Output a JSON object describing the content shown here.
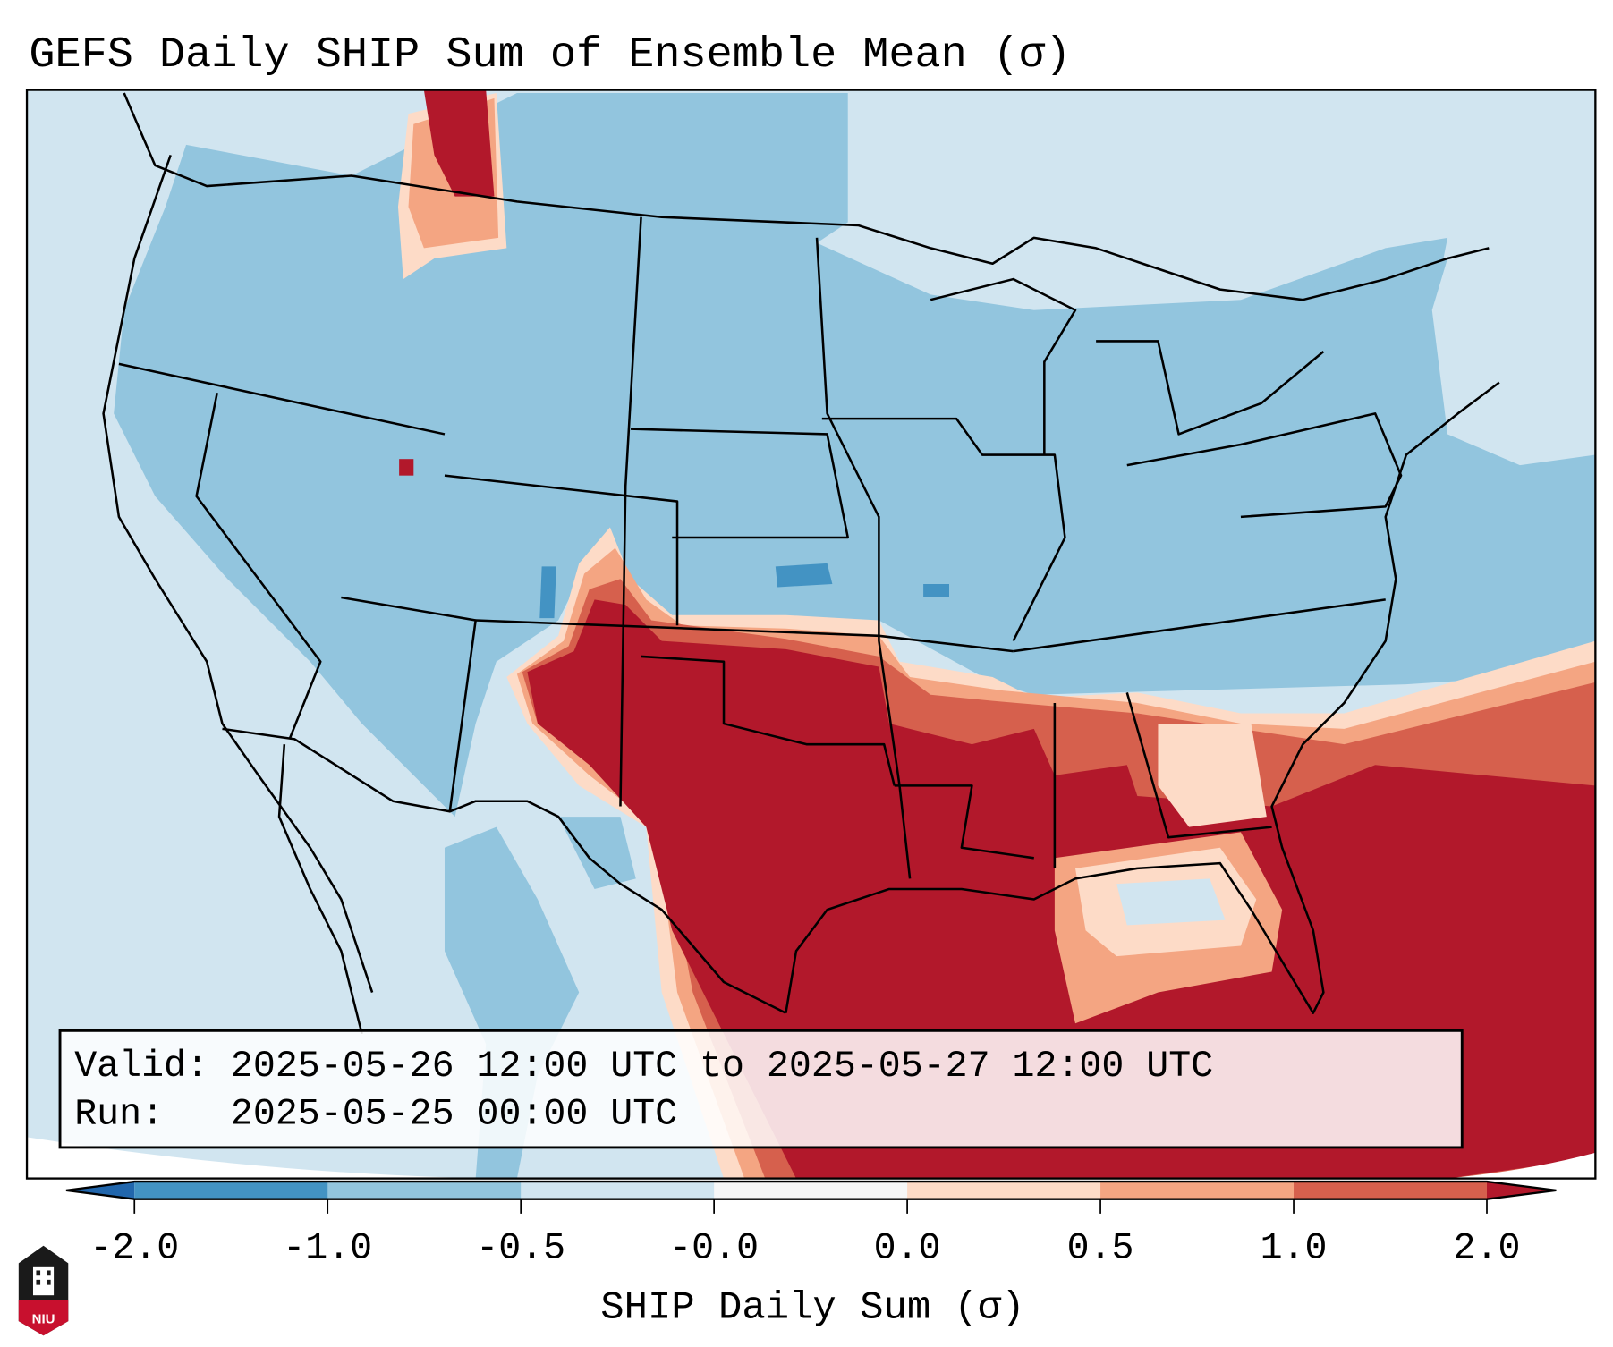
{
  "chart_data": {
    "type": "heatmap",
    "title": "GEFS Daily SHIP Sum of Ensemble Mean (σ)",
    "map_region": "Contiguous United States, southern Canada, northern Mexico, Gulf of Mexico",
    "colorbar": {
      "label": "SHIP Daily Sum (σ)",
      "tick_labels": [
        "-2.0",
        "-1.0",
        "-0.5",
        "-0.0",
        "0.0",
        "0.5",
        "1.0",
        "2.0"
      ],
      "bins": [
        {
          "range": "< -2.0",
          "color": "#2166ac"
        },
        {
          "range": "-2.0 to -1.0",
          "color": "#4393c3"
        },
        {
          "range": "-1.0 to -0.5",
          "color": "#92c5de"
        },
        {
          "range": "-0.5 to -0.0",
          "color": "#d1e5f0"
        },
        {
          "range": "-0.0 to 0.0",
          "color": "#f7f7f7"
        },
        {
          "range": "0.0 to 0.5",
          "color": "#fddbc7"
        },
        {
          "range": "0.5 to 1.0",
          "color": "#f4a582"
        },
        {
          "range": "1.0 to 2.0",
          "color": "#d6604d"
        },
        {
          "range": "> 2.0",
          "color": "#b2182b"
        }
      ],
      "extend": "both",
      "orientation": "horizontal"
    },
    "annotations": {
      "valid": "Valid: 2025-05-26 12:00 UTC to 2025-05-27 12:00 UTC",
      "run": "Run:   2025-05-25 00:00 UTC"
    },
    "summary_regions": [
      {
        "region": "Southern Plains, Texas, Gulf Coast, Gulf of Mexico, Florida, Southeast Atlantic",
        "value_bin": "> 2.0"
      },
      {
        "region": "Northern Idaho / southern British Columbia strip",
        "value_bin": "> 2.0"
      },
      {
        "region": "Central and northern US, Midwest, Northeast",
        "value_bin": "-1.0 to -0.5"
      },
      {
        "region": "West Coast, Canada, Mexico interior, Atlantic",
        "value_bin": "-0.5 to -0.0"
      }
    ]
  },
  "logo": {
    "text": "NIU"
  }
}
